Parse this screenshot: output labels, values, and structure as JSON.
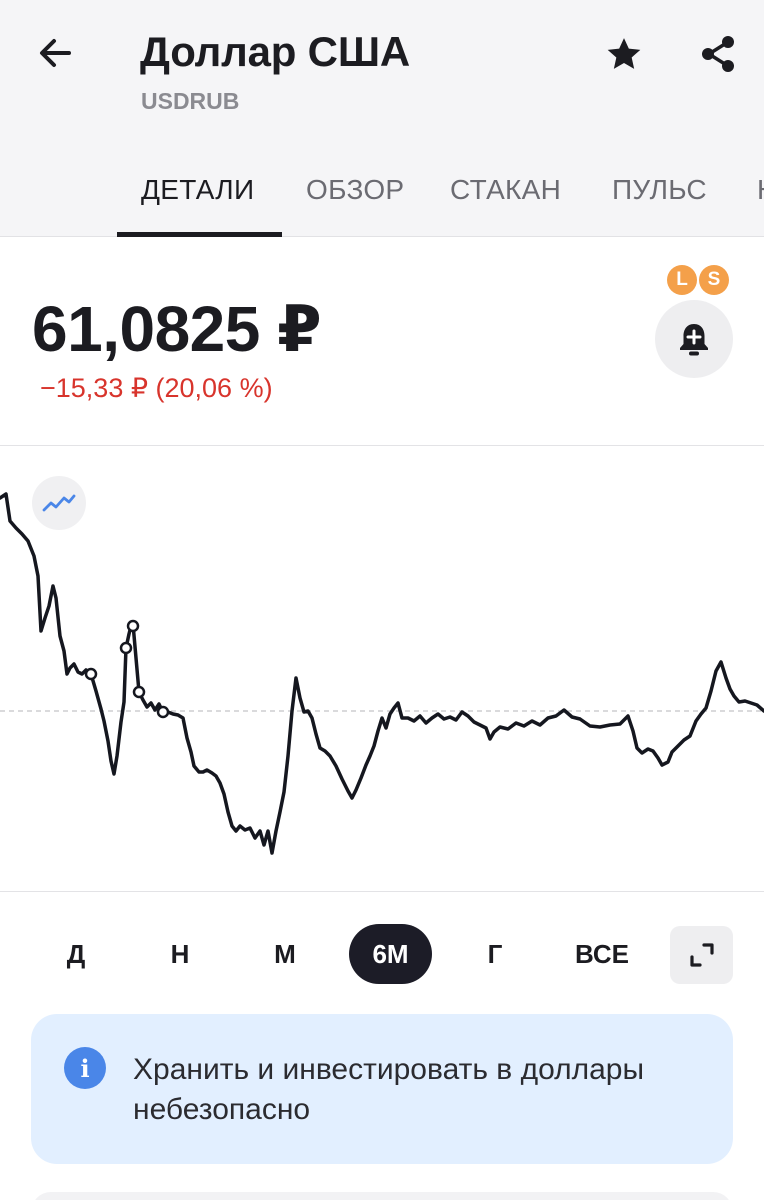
{
  "header": {
    "title": "Доллар США",
    "ticker": "USDRUB",
    "back_icon": "arrow-left-icon",
    "favorite_icon": "star-icon",
    "share_icon": "share-icon"
  },
  "tabs": [
    {
      "label": "ДЕТАЛИ",
      "active": true
    },
    {
      "label": "ОБЗОР",
      "active": false
    },
    {
      "label": "СТАКАН",
      "active": false
    },
    {
      "label": "ПУЛЬС",
      "active": false
    },
    {
      "label": "Н",
      "active": false
    }
  ],
  "quote": {
    "price": "61,0825 ₽",
    "change": "−15,33 ₽ (20,06 %)"
  },
  "badges": {
    "left": "L",
    "right": "S",
    "alert_icon": "bell-plus-icon"
  },
  "chart_type_icon": "line-chart-icon",
  "periods": [
    {
      "label": "Д",
      "active": false
    },
    {
      "label": "Н",
      "active": false
    },
    {
      "label": "М",
      "active": false
    },
    {
      "label": "6М",
      "active": true
    },
    {
      "label": "Г",
      "active": false
    },
    {
      "label": "ВСЕ",
      "active": false
    }
  ],
  "expand_icon": "expand-icon",
  "info": {
    "icon": "info-icon",
    "text": "Хранить и инвестировать в доллары небезопасно"
  },
  "colors": {
    "negative": "#d8342c",
    "line": "#15171f",
    "active_period_bg": "#1c1c27",
    "info_bg": "#e2efff",
    "badge": "#f4a04a"
  }
}
